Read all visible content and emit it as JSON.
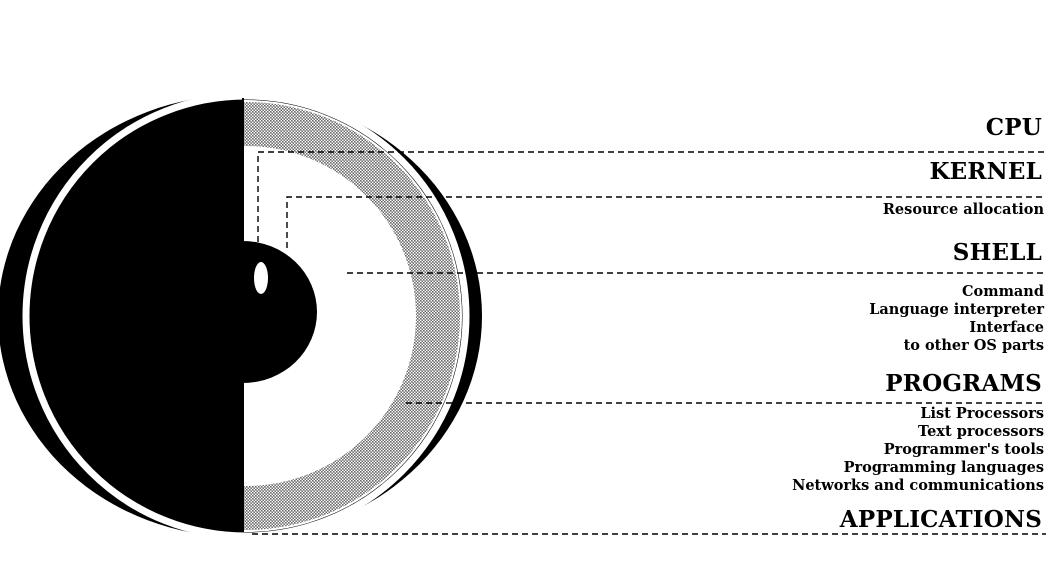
{
  "layers": {
    "cpu": {
      "label": "CPU"
    },
    "kernel": {
      "label": "KERNEL",
      "details": [
        "Resource allocation"
      ]
    },
    "shell": {
      "label": "SHELL",
      "details": [
        "Command",
        "Language interpreter",
        "Interface",
        "to other OS parts"
      ]
    },
    "programs": {
      "label": "PROGRAMS",
      "details": [
        "List Processors",
        "Text processors",
        "Programmer's tools",
        "Programming languages",
        "Networks and communications"
      ]
    },
    "applications": {
      "label": "APPLICATIONS"
    }
  },
  "colors": {
    "ink": "#000000",
    "paper": "#ffffff",
    "shade": "#9a9a9a"
  }
}
